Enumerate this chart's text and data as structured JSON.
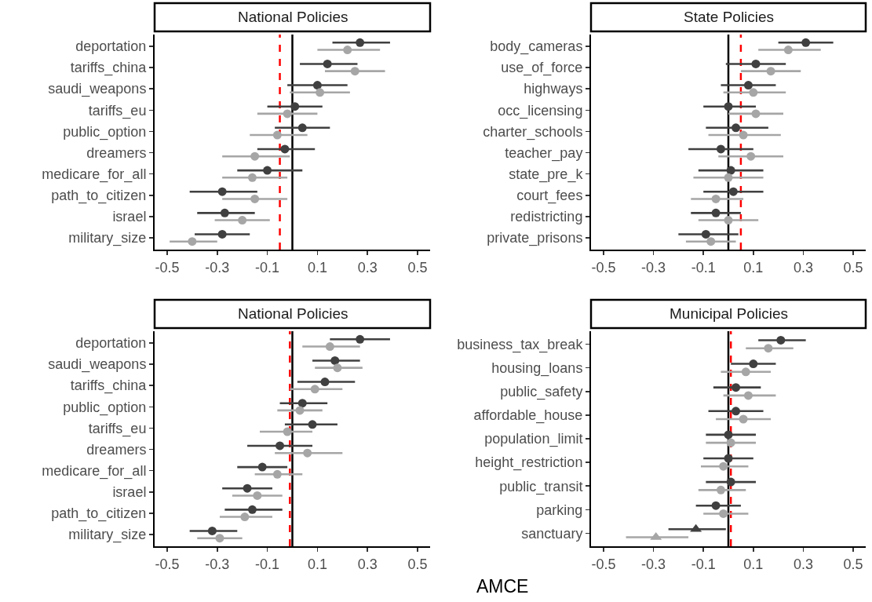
{
  "chart_data": [
    {
      "type": "scatter",
      "orientation": "horizontal",
      "title": "National Policies",
      "categories": [
        "deportation",
        "tariffs_china",
        "saudi_weapons",
        "tariffs_eu",
        "public_option",
        "dreamers",
        "medicare_for_all",
        "path_to_citizen",
        "israel",
        "military_size"
      ],
      "xlim": [
        -0.55,
        0.55
      ],
      "xticks": [
        -0.5,
        -0.3,
        -0.1,
        0.1,
        0.3,
        0.5
      ],
      "grid": false,
      "series": [
        {
          "color": "#404040",
          "marker": "circle",
          "values": [
            0.27,
            0.14,
            0.1,
            0.01,
            0.04,
            -0.03,
            -0.1,
            -0.28,
            -0.27,
            -0.28
          ],
          "errors": [
            [
              0.16,
              0.39
            ],
            [
              0.03,
              0.26
            ],
            [
              -0.02,
              0.22
            ],
            [
              -0.1,
              0.12
            ],
            [
              -0.07,
              0.15
            ],
            [
              -0.14,
              0.09
            ],
            [
              -0.22,
              0.04
            ],
            [
              -0.41,
              -0.14
            ],
            [
              -0.38,
              -0.15
            ],
            [
              -0.39,
              -0.17
            ]
          ]
        },
        {
          "color": "#a6a6a6",
          "marker": "circle",
          "values": [
            0.22,
            0.25,
            0.11,
            -0.02,
            -0.06,
            -0.15,
            -0.16,
            -0.15,
            -0.2,
            -0.4
          ],
          "errors": [
            [
              0.1,
              0.35
            ],
            [
              0.13,
              0.37
            ],
            [
              -0.01,
              0.23
            ],
            [
              -0.14,
              0.1
            ],
            [
              -0.17,
              0.06
            ],
            [
              -0.28,
              -0.01
            ],
            [
              -0.28,
              -0.02
            ],
            [
              -0.28,
              -0.02
            ],
            [
              -0.31,
              -0.09
            ],
            [
              -0.49,
              -0.3
            ]
          ]
        }
      ],
      "ref_lines": [
        {
          "axis": "x",
          "value": 0,
          "color": "#000000",
          "line_style": "solid"
        },
        {
          "axis": "x",
          "value": -0.05,
          "color": "#ff0000",
          "line_style": "dashed"
        }
      ]
    },
    {
      "type": "scatter",
      "orientation": "horizontal",
      "title": "State Policies",
      "categories": [
        "body_cameras",
        "use_of_force",
        "highways",
        "occ_licensing",
        "charter_schools",
        "teacher_pay",
        "state_pre_k",
        "court_fees",
        "redistricting",
        "private_prisons"
      ],
      "xlim": [
        -0.55,
        0.55
      ],
      "xticks": [
        -0.5,
        -0.3,
        -0.1,
        0.1,
        0.3,
        0.5
      ],
      "grid": false,
      "series": [
        {
          "color": "#404040",
          "marker": "circle",
          "values": [
            0.31,
            0.11,
            0.08,
            0.0,
            0.03,
            -0.03,
            0.01,
            0.02,
            -0.05,
            -0.09
          ],
          "errors": [
            [
              0.2,
              0.42
            ],
            [
              -0.01,
              0.23
            ],
            [
              -0.03,
              0.19
            ],
            [
              -0.1,
              0.11
            ],
            [
              -0.09,
              0.16
            ],
            [
              -0.16,
              0.1
            ],
            [
              -0.12,
              0.14
            ],
            [
              -0.1,
              0.14
            ],
            [
              -0.15,
              0.05
            ],
            [
              -0.2,
              0.04
            ]
          ]
        },
        {
          "color": "#a6a6a6",
          "marker": "circle",
          "values": [
            0.24,
            0.17,
            0.1,
            0.11,
            0.06,
            0.09,
            0.0,
            -0.05,
            0.0,
            -0.07
          ],
          "errors": [
            [
              0.12,
              0.37
            ],
            [
              0.05,
              0.29
            ],
            [
              -0.02,
              0.23
            ],
            [
              0.0,
              0.22
            ],
            [
              -0.08,
              0.21
            ],
            [
              -0.04,
              0.22
            ],
            [
              -0.14,
              0.14
            ],
            [
              -0.15,
              0.06
            ],
            [
              -0.12,
              0.12
            ],
            [
              -0.17,
              0.03
            ]
          ]
        }
      ],
      "ref_lines": [
        {
          "axis": "x",
          "value": 0,
          "color": "#000000",
          "line_style": "solid"
        },
        {
          "axis": "x",
          "value": 0.05,
          "color": "#ff0000",
          "line_style": "dashed"
        }
      ]
    },
    {
      "type": "scatter",
      "orientation": "horizontal",
      "title": "National Policies",
      "xlabel": "AMCE",
      "categories": [
        "deportation",
        "saudi_weapons",
        "tariffs_china",
        "public_option",
        "tariffs_eu",
        "dreamers",
        "medicare_for_all",
        "israel",
        "path_to_citizen",
        "military_size"
      ],
      "xlim": [
        -0.55,
        0.55
      ],
      "xticks": [
        -0.5,
        -0.3,
        -0.1,
        0.1,
        0.3,
        0.5
      ],
      "grid": false,
      "series": [
        {
          "color": "#404040",
          "marker": "circle",
          "values": [
            0.27,
            0.17,
            0.13,
            0.04,
            0.08,
            -0.05,
            -0.12,
            -0.18,
            -0.16,
            -0.32
          ],
          "errors": [
            [
              0.15,
              0.39
            ],
            [
              0.08,
              0.27
            ],
            [
              0.02,
              0.25
            ],
            [
              -0.05,
              0.14
            ],
            [
              -0.03,
              0.18
            ],
            [
              -0.18,
              0.08
            ],
            [
              -0.22,
              -0.02
            ],
            [
              -0.28,
              -0.08
            ],
            [
              -0.27,
              -0.04
            ],
            [
              -0.41,
              -0.22
            ]
          ]
        },
        {
          "color": "#a6a6a6",
          "marker": "circle",
          "values": [
            0.15,
            0.18,
            0.09,
            0.03,
            -0.02,
            0.06,
            -0.06,
            -0.14,
            -0.19,
            -0.29
          ],
          "errors": [
            [
              0.04,
              0.27
            ],
            [
              0.09,
              0.28
            ],
            [
              -0.01,
              0.2
            ],
            [
              -0.06,
              0.12
            ],
            [
              -0.13,
              0.08
            ],
            [
              -0.07,
              0.2
            ],
            [
              -0.15,
              0.04
            ],
            [
              -0.24,
              -0.04
            ],
            [
              -0.29,
              -0.08
            ],
            [
              -0.38,
              -0.2
            ]
          ]
        }
      ],
      "ref_lines": [
        {
          "axis": "x",
          "value": 0,
          "color": "#000000",
          "line_style": "solid"
        },
        {
          "axis": "x",
          "value": -0.01,
          "color": "#ff0000",
          "line_style": "dashed"
        }
      ]
    },
    {
      "type": "scatter",
      "orientation": "horizontal",
      "title": "Municipal Policies",
      "categories": [
        "business_tax_break",
        "housing_loans",
        "public_safety",
        "affordable_house",
        "population_limit",
        "height_restriction",
        "public_transit",
        "parking",
        "sanctuary"
      ],
      "xlim": [
        -0.55,
        0.55
      ],
      "xticks": [
        -0.5,
        -0.3,
        -0.1,
        0.1,
        0.3,
        0.5
      ],
      "grid": false,
      "series": [
        {
          "color": "#404040",
          "marker": "circle",
          "values": [
            0.21,
            0.1,
            0.03,
            0.03,
            0.0,
            0.0,
            0.01,
            -0.05,
            null
          ],
          "errors": [
            [
              0.12,
              0.31
            ],
            [
              0.01,
              0.19
            ],
            [
              -0.06,
              0.13
            ],
            [
              -0.08,
              0.14
            ],
            [
              -0.09,
              0.11
            ],
            [
              -0.1,
              0.1
            ],
            [
              -0.09,
              0.11
            ],
            [
              -0.13,
              0.05
            ],
            null
          ]
        },
        {
          "color": "#a6a6a6",
          "marker": "circle",
          "values": [
            0.16,
            0.07,
            0.08,
            0.06,
            0.01,
            -0.02,
            -0.03,
            -0.02,
            null
          ],
          "errors": [
            [
              0.07,
              0.26
            ],
            [
              -0.03,
              0.17
            ],
            [
              -0.02,
              0.19
            ],
            [
              -0.05,
              0.17
            ],
            [
              -0.09,
              0.11
            ],
            [
              -0.11,
              0.08
            ],
            [
              -0.12,
              0.07
            ],
            [
              -0.1,
              0.08
            ],
            null
          ]
        },
        {
          "color": "#404040",
          "marker": "triangle",
          "values": [
            null,
            null,
            null,
            null,
            null,
            null,
            null,
            null,
            -0.13
          ],
          "errors": [
            null,
            null,
            null,
            null,
            null,
            null,
            null,
            null,
            [
              -0.24,
              -0.01
            ]
          ]
        },
        {
          "color": "#a6a6a6",
          "marker": "triangle",
          "values": [
            null,
            null,
            null,
            null,
            null,
            null,
            null,
            null,
            -0.29
          ],
          "errors": [
            null,
            null,
            null,
            null,
            null,
            null,
            null,
            null,
            [
              -0.41,
              -0.16
            ]
          ]
        }
      ],
      "ref_lines": [
        {
          "axis": "x",
          "value": 0,
          "color": "#000000",
          "line_style": "solid"
        },
        {
          "axis": "x",
          "value": 0.01,
          "color": "#ff0000",
          "line_style": "dashed"
        }
      ]
    }
  ]
}
